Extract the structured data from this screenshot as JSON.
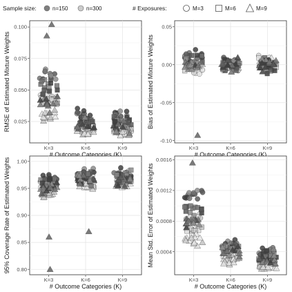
{
  "legend": {
    "sample_title": "Sample size:",
    "sample_items": [
      {
        "label": "n=150",
        "fill": "#7f7f7f"
      },
      {
        "label": "n=300",
        "fill": "#cccccc"
      }
    ],
    "exposure_title": "# Exposures:",
    "exposure_items": [
      {
        "label": "M=3",
        "shape": "circle"
      },
      {
        "label": "M=6",
        "shape": "square"
      },
      {
        "label": "M=9",
        "shape": "triangle"
      }
    ]
  },
  "chart_data": [
    {
      "type": "scatter",
      "title": "",
      "xlabel": "# Outcome Categories (K)",
      "ylabel": "RMSE of Estimated Mixture Weights",
      "categories": [
        "K=3",
        "K=6",
        "K=9"
      ],
      "yticks": [
        0.025,
        0.05,
        0.075,
        0.1
      ],
      "ytick_labels": [
        "0.025",
        "0.050",
        "0.075",
        "0.100"
      ],
      "ylim": [
        0.008,
        0.105
      ],
      "grid": true,
      "series": [
        {
          "name": "n=150",
          "values": [
            [
              0.062,
              0.052,
              0.039
            ],
            [
              0.031,
              0.026,
              0.022
            ],
            [
              0.028,
              0.024,
              0.02
            ]
          ]
        },
        {
          "name": "n=300",
          "values": [
            [
              0.044,
              0.04,
              0.03
            ],
            [
              0.021,
              0.019,
              0.017
            ],
            [
              0.019,
              0.017,
              0.016
            ]
          ]
        }
      ],
      "notable_points": [
        {
          "category": "K=3",
          "y": 0.102
        },
        {
          "category": "K=3",
          "y": 0.093
        }
      ]
    },
    {
      "type": "scatter",
      "title": "",
      "xlabel": "# Outcome Categories (K)",
      "ylabel": "Bias of Estimated Mixture Weights",
      "categories": [
        "K=3",
        "K=6",
        "K=9"
      ],
      "yticks": [
        -0.1,
        -0.05,
        0.0,
        0.05
      ],
      "ytick_labels": [
        "-0.10",
        "-0.05",
        "0.00",
        "0.05"
      ],
      "ylim": [
        -0.103,
        0.058
      ],
      "grid": true,
      "series": [
        {
          "name": "n=150",
          "values": [
            [
              0.01,
              0.005,
              0.0
            ],
            [
              0.002,
              0.0,
              0.0
            ],
            [
              0.002,
              0.0,
              0.0
            ]
          ]
        },
        {
          "name": "n=300",
          "values": [
            [
              -0.005,
              0.0,
              0.002
            ],
            [
              0.0,
              0.0,
              0.0
            ],
            [
              0.0,
              0.0,
              0.0
            ]
          ]
        }
      ],
      "notable_points": [
        {
          "category": "K=3",
          "y": -0.093
        }
      ]
    },
    {
      "type": "scatter",
      "title": "",
      "xlabel": "# Outcome Categories (K)",
      "ylabel": "95% Coverage Rate of Estimated Weights",
      "categories": [
        "K=3",
        "K=6",
        "K=9"
      ],
      "yticks": [
        0.8,
        0.85,
        0.9,
        0.95,
        1.0
      ],
      "ytick_labels": [
        "0.80",
        "0.85",
        "0.90",
        "0.95",
        "1.00"
      ],
      "ylim": [
        0.79,
        1.01
      ],
      "grid": true,
      "series": [
        {
          "name": "n=150",
          "values": [
            [
              0.97,
              0.96,
              0.95
            ],
            [
              0.975,
              0.97,
              0.965
            ],
            [
              0.975,
              0.97,
              0.965
            ]
          ]
        },
        {
          "name": "n=300",
          "values": [
            [
              0.96,
              0.95,
              0.94
            ],
            [
              0.97,
              0.965,
              0.96
            ],
            [
              0.975,
              0.965,
              0.96
            ]
          ]
        }
      ],
      "notable_points": [
        {
          "category": "K=3",
          "y": 0.8
        },
        {
          "category": "K=3",
          "y": 0.86
        },
        {
          "category": "K=6",
          "y": 0.87
        }
      ]
    },
    {
      "type": "scatter",
      "title": "",
      "xlabel": "# Outcome Categories (K)",
      "ylabel": "Mean Std. Error of Estimated Weights",
      "categories": [
        "K=3",
        "K=6",
        "K=9"
      ],
      "yticks": [
        0.0004,
        0.0008,
        0.0012,
        0.0016
      ],
      "ytick_labels": [
        "0.0004",
        "0.0008",
        "0.0012",
        "0.0016"
      ],
      "ylim": [
        0.0001,
        0.00165
      ],
      "grid": true,
      "series": [
        {
          "name": "n=150",
          "values": [
            [
              0.00115,
              0.00095,
              0.0008
            ],
            [
              0.0005,
              0.00045,
              0.0004
            ],
            [
              0.0004,
              0.00035,
              0.0003
            ]
          ]
        },
        {
          "name": "n=300",
          "values": [
            [
              0.00082,
              0.00068,
              0.00055
            ],
            [
              0.00036,
              0.00032,
              0.00028
            ],
            [
              0.00029,
              0.00026,
              0.00022
            ]
          ]
        }
      ],
      "notable_points": [
        {
          "category": "K=3",
          "y": 0.00156
        }
      ]
    }
  ]
}
